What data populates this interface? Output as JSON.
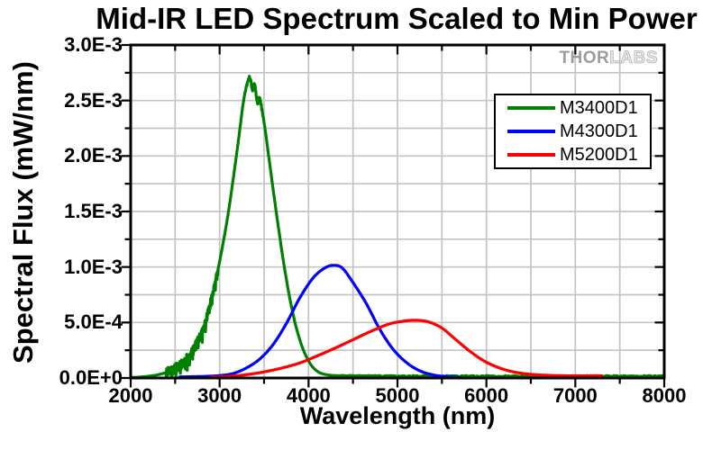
{
  "watermark": {
    "part1": "THOR",
    "part2": "LABS"
  },
  "chart_data": {
    "type": "line",
    "title": "Mid-IR LED Spectrum Scaled to Min Power",
    "xlabel": "Wavelength (nm)",
    "ylabel": "Spectral Flux (mW/nm)",
    "x_axis": {
      "label": "Wavelength (nm)",
      "min": 2000,
      "max": 8000,
      "major_tick_step": 1000,
      "minor_tick_step": 500,
      "tick_values": [
        2000,
        3000,
        4000,
        5000,
        6000,
        7000,
        8000
      ],
      "tick_labels": [
        "2000",
        "3000",
        "4000",
        "5000",
        "6000",
        "7000",
        "8000"
      ]
    },
    "y_axis": {
      "label": "Spectral Flux (mW/nm)",
      "min": 0,
      "max": 0.003,
      "major_tick_step": 0.0005,
      "minor_tick_step": 0.00025,
      "tick_values": [
        0,
        0.0005,
        0.001,
        0.0015,
        0.002,
        0.0025,
        0.003
      ],
      "tick_labels": [
        "0.0E+0",
        "5.0E-4",
        "1.0E-3",
        "1.5E-3",
        "2.0E-3",
        "2.5E-3",
        "3.0E-3"
      ]
    },
    "grid": {
      "visible": true,
      "x_step": 500,
      "y_step": 0.00025,
      "color": "#c4c4c4"
    },
    "legend": {
      "position": "top-right"
    },
    "frame_color": "#000000",
    "series": [
      {
        "name": "M3400D1",
        "color": "#008000",
        "points": [
          [
            2000,
            4e-06
          ],
          [
            2100,
            8e-06
          ],
          [
            2200,
            1.6e-05
          ],
          [
            2300,
            2.8e-05
          ],
          [
            2400,
            5e-05
          ],
          [
            2500,
            8.5e-05
          ],
          [
            2600,
            0.00015
          ],
          [
            2700,
            0.00025
          ],
          [
            2800,
            0.00042
          ],
          [
            2900,
            0.00068
          ],
          [
            3000,
            0.00105
          ],
          [
            3100,
            0.0015
          ],
          [
            3200,
            0.00207
          ],
          [
            3270,
            0.0025
          ],
          [
            3320,
            0.00268
          ],
          [
            3345,
            0.0027
          ],
          [
            3370,
            0.00259
          ],
          [
            3395,
            0.00265
          ],
          [
            3425,
            0.00248
          ],
          [
            3450,
            0.00252
          ],
          [
            3490,
            0.00236
          ],
          [
            3560,
            0.00195
          ],
          [
            3650,
            0.00142
          ],
          [
            3740,
            0.00094
          ],
          [
            3830,
            0.00056
          ],
          [
            3920,
            0.0003
          ],
          [
            4010,
            0.00014
          ],
          [
            4100,
            6e-05
          ],
          [
            4200,
            3e-05
          ],
          [
            4350,
            2e-05
          ],
          [
            4600,
            1.8e-05
          ],
          [
            5000,
            1.8e-05
          ],
          [
            6000,
            1.8e-05
          ],
          [
            7000,
            1.8e-05
          ],
          [
            8000,
            1.8e-05
          ]
        ],
        "noise_regions": [
          {
            "from": 2400,
            "to": 2980,
            "amplitude": 4.5e-05
          },
          {
            "from": 3290,
            "to": 3500,
            "amplitude": 1.2e-05
          },
          {
            "from": 4350,
            "to": 8000,
            "amplitude": 5e-06
          }
        ]
      },
      {
        "name": "M4300D1",
        "color": "#0000ff",
        "points": [
          [
            2550,
            1e-05
          ],
          [
            2700,
            1.2e-05
          ],
          [
            2850,
            1.5e-05
          ],
          [
            3000,
            2.2e-05
          ],
          [
            3150,
            4e-05
          ],
          [
            3300,
            9e-05
          ],
          [
            3450,
            0.00017
          ],
          [
            3600,
            0.0003
          ],
          [
            3750,
            0.00049
          ],
          [
            3900,
            0.00072
          ],
          [
            4050,
            0.0009
          ],
          [
            4180,
            0.00099
          ],
          [
            4280,
            0.001015
          ],
          [
            4380,
            0.00099
          ],
          [
            4500,
            0.00086
          ],
          [
            4650,
            0.00067
          ],
          [
            4800,
            0.00044
          ],
          [
            4950,
            0.00026
          ],
          [
            5100,
            0.00014
          ],
          [
            5250,
            6.5e-05
          ],
          [
            5400,
            2.8e-05
          ],
          [
            5550,
            1.2e-05
          ],
          [
            5700,
            5e-06
          ]
        ],
        "noise_regions": []
      },
      {
        "name": "M5200D1",
        "color": "#ff0000",
        "points": [
          [
            2900,
            8e-06
          ],
          [
            3100,
            1.4e-05
          ],
          [
            3300,
            3e-05
          ],
          [
            3500,
            5.5e-05
          ],
          [
            3700,
            9e-05
          ],
          [
            3900,
            0.000135
          ],
          [
            4100,
            0.0002
          ],
          [
            4300,
            0.00027
          ],
          [
            4500,
            0.000345
          ],
          [
            4700,
            0.00042
          ],
          [
            4900,
            0.000485
          ],
          [
            5050,
            0.00051
          ],
          [
            5200,
            0.00052
          ],
          [
            5350,
            0.000505
          ],
          [
            5500,
            0.00045
          ],
          [
            5650,
            0.00035
          ],
          [
            5800,
            0.00025
          ],
          [
            5950,
            0.000165
          ],
          [
            6100,
            0.000105
          ],
          [
            6250,
            6.5e-05
          ],
          [
            6400,
            4.2e-05
          ],
          [
            6550,
            3e-05
          ],
          [
            6700,
            2.4e-05
          ],
          [
            6900,
            2e-05
          ],
          [
            7150,
            1.8e-05
          ],
          [
            7300,
            1.8e-05
          ]
        ],
        "noise_regions": []
      }
    ]
  }
}
